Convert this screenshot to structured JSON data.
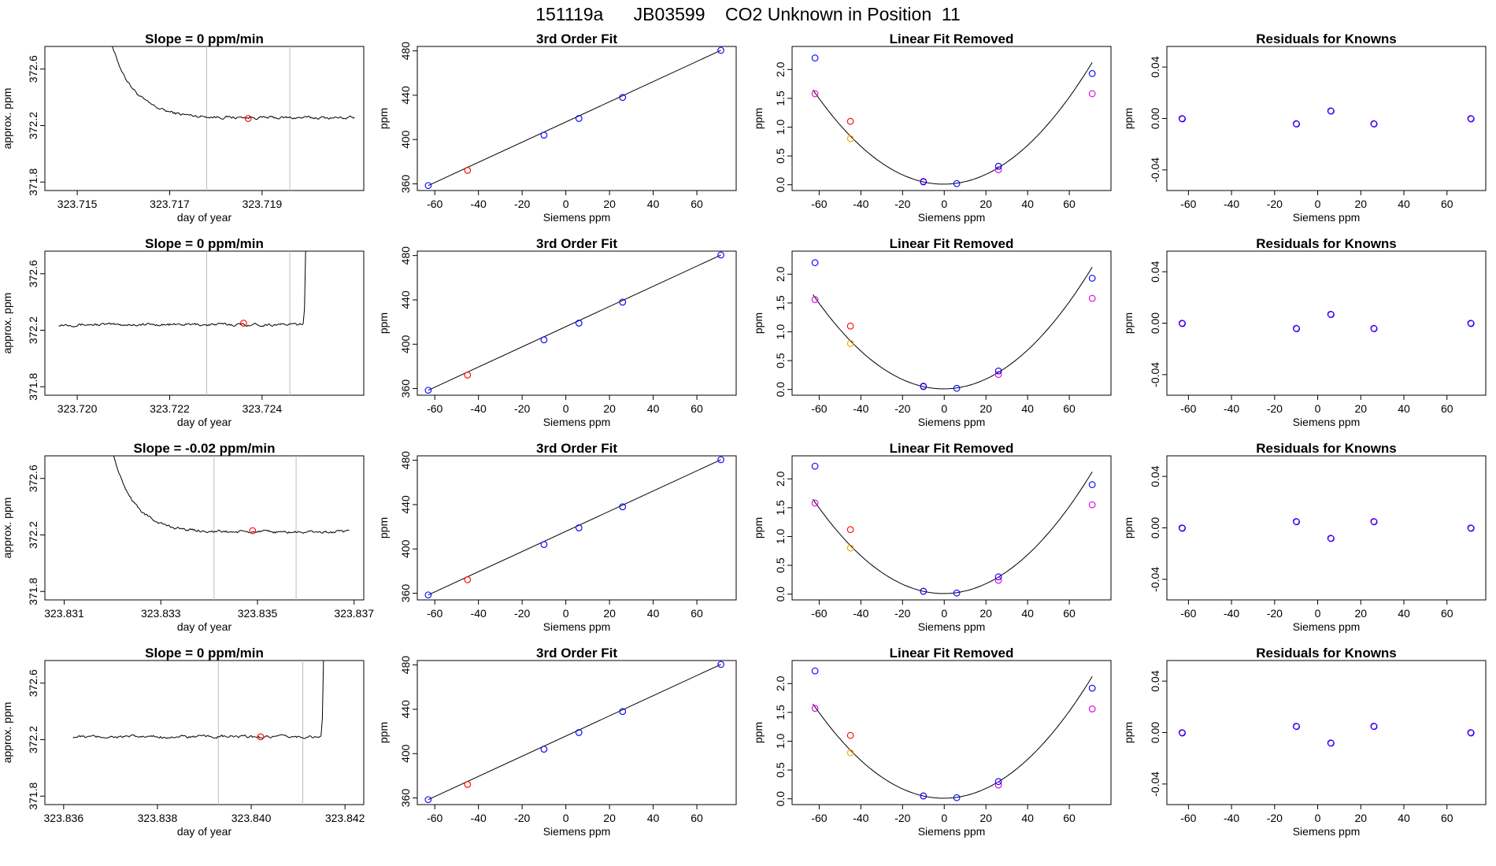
{
  "page": {
    "title": "151119a      JB03599    CO2 Unknown in Position  11"
  },
  "labels": {
    "x_time": "day of year",
    "y_time": "approx. ppm",
    "x_fit": "Siemens ppm",
    "y_fit": "ppm",
    "title_fit": "3rd Order Fit",
    "title_lin": "Linear Fit Removed",
    "title_res": "Residuals for Knowns"
  },
  "colors": {
    "standard": "#0000ff",
    "unknown": "#ff0000",
    "alt": "#dd00dd",
    "alt2": "#ffa500",
    "vline": "#bdbdbd",
    "curve": "#000000"
  },
  "chart_data": [
    {
      "type": "multi-panel",
      "row": 1,
      "time_series": {
        "type": "line",
        "title": "Slope =  0  ppm/min",
        "xlabel": "day of year",
        "ylabel": "approx. ppm",
        "xlim": [
          323.7143,
          323.7212
        ],
        "ylim": [
          371.74,
          372.76
        ],
        "xticks": [
          "323.715",
          "323.717",
          "323.719"
        ],
        "xtick_values": [
          323.715,
          323.717,
          323.719
        ],
        "yticks": [
          "371.8",
          "372.2",
          "372.6"
        ],
        "ytick_values": [
          371.8,
          372.2,
          372.6
        ],
        "vlines": [
          323.7178,
          323.7196
        ],
        "marker": {
          "x": 323.7187,
          "y": 372.25
        },
        "trace": {
          "x_start": 323.7155,
          "x_end": 323.721,
          "start_value": 373.1,
          "settle_value": 372.255,
          "decay": 0.0005,
          "noise": 0.008,
          "spike_at": null
        }
      },
      "fit": {
        "type": "scatter",
        "title": "3rd Order Fit",
        "xlabel": "Siemens ppm",
        "ylabel": "ppm",
        "xlim": [
          -68,
          78
        ],
        "ylim": [
          354,
          484
        ],
        "xticks": [
          -60,
          -40,
          -20,
          0,
          20,
          40,
          60
        ],
        "yticks": [
          360,
          400,
          440,
          480
        ],
        "line": [
          [
            -63,
            358.5
          ],
          [
            71,
            480.5
          ]
        ],
        "standards": [
          [
            -63,
            358.5
          ],
          [
            -10,
            404
          ],
          [
            6,
            419
          ],
          [
            26,
            438
          ],
          [
            71,
            480.5
          ]
        ],
        "unknown": [
          [
            -45,
            372.2
          ]
        ]
      },
      "linear_removed": {
        "type": "scatter",
        "title": "Linear Fit Removed",
        "xlabel": "Siemens ppm",
        "ylabel": "ppm",
        "xlim": [
          -73,
          80
        ],
        "ylim": [
          -0.1,
          2.4
        ],
        "xticks": [
          -60,
          -40,
          -20,
          0,
          20,
          40,
          60
        ],
        "yticks": [
          0.0,
          0.5,
          1.0,
          1.5,
          2.0
        ],
        "ytick_labels": [
          "0.0",
          "0.5",
          "1.0",
          "1.5",
          "2.0"
        ],
        "curve": {
          "a": 0.000416,
          "b": 0.00022,
          "c": 0.01
        },
        "standards": [
          [
            -62,
            2.2
          ],
          [
            -10,
            0.05
          ],
          [
            6,
            0.02
          ],
          [
            26,
            0.32
          ],
          [
            71,
            1.93
          ]
        ],
        "unknown": [
          [
            -45,
            1.1
          ]
        ],
        "alt": [
          [
            -62,
            1.58
          ],
          [
            -10,
            0.06
          ],
          [
            26,
            0.26
          ],
          [
            71,
            1.58
          ]
        ],
        "alt2": [
          [
            -45,
            0.8
          ]
        ]
      },
      "residuals": {
        "type": "scatter",
        "title": "Residuals for Knowns",
        "xlabel": "Siemens ppm",
        "ylabel": "ppm",
        "xlim": [
          -70,
          78
        ],
        "ylim": [
          -0.056,
          0.056
        ],
        "xticks": [
          -60,
          -40,
          -20,
          0,
          20,
          40,
          60
        ],
        "yticks": [
          -0.04,
          0.0,
          0.04
        ],
        "ytick_labels": [
          "-0.04",
          "0.00",
          "0.04"
        ],
        "points": [
          [
            -63,
            0.0
          ],
          [
            -10,
            -0.004
          ],
          [
            6,
            0.006
          ],
          [
            26,
            -0.004
          ],
          [
            71,
            0.0
          ]
        ]
      }
    },
    {
      "type": "multi-panel",
      "row": 2,
      "time_series": {
        "type": "line",
        "title": "Slope =  0  ppm/min",
        "xlabel": "day of year",
        "ylabel": "approx. ppm",
        "xlim": [
          323.7193,
          323.7262
        ],
        "ylim": [
          371.74,
          372.76
        ],
        "xticks": [
          "323.720",
          "323.722",
          "323.724"
        ],
        "xtick_values": [
          323.72,
          323.722,
          323.724
        ],
        "yticks": [
          "371.8",
          "372.2",
          "372.6"
        ],
        "ytick_values": [
          371.8,
          372.2,
          372.6
        ],
        "vlines": [
          323.7228,
          323.7246
        ],
        "marker": {
          "x": 323.7236,
          "y": 372.25
        },
        "trace": {
          "x_start": 323.7196,
          "x_end": 323.725,
          "start_value": 372.24,
          "settle_value": 372.24,
          "decay": 0.0005,
          "noise": 0.008,
          "spike_at": 323.7249
        }
      },
      "fit": {
        "type": "scatter",
        "title": "3rd Order Fit",
        "xlabel": "Siemens ppm",
        "ylabel": "ppm",
        "xlim": [
          -68,
          78
        ],
        "ylim": [
          354,
          484
        ],
        "xticks": [
          -60,
          -40,
          -20,
          0,
          20,
          40,
          60
        ],
        "yticks": [
          360,
          400,
          440,
          480
        ],
        "line": [
          [
            -63,
            358.5
          ],
          [
            71,
            480.5
          ]
        ],
        "standards": [
          [
            -63,
            358.5
          ],
          [
            -10,
            404
          ],
          [
            6,
            419
          ],
          [
            26,
            438
          ],
          [
            71,
            480.5
          ]
        ],
        "unknown": [
          [
            -45,
            372.2
          ]
        ]
      },
      "linear_removed": {
        "type": "scatter",
        "title": "Linear Fit Removed",
        "xlabel": "Siemens ppm",
        "ylabel": "ppm",
        "xlim": [
          -73,
          80
        ],
        "ylim": [
          -0.1,
          2.4
        ],
        "xticks": [
          -60,
          -40,
          -20,
          0,
          20,
          40,
          60
        ],
        "yticks": [
          0.0,
          0.5,
          1.0,
          1.5,
          2.0
        ],
        "ytick_labels": [
          "0.0",
          "0.5",
          "1.0",
          "1.5",
          "2.0"
        ],
        "curve": {
          "a": 0.000416,
          "b": 0.00022,
          "c": 0.01
        },
        "standards": [
          [
            -62,
            2.2
          ],
          [
            -10,
            0.05
          ],
          [
            6,
            0.02
          ],
          [
            26,
            0.32
          ],
          [
            71,
            1.93
          ]
        ],
        "unknown": [
          [
            -45,
            1.1
          ]
        ],
        "alt": [
          [
            -62,
            1.56
          ],
          [
            -10,
            0.06
          ],
          [
            26,
            0.26
          ],
          [
            71,
            1.58
          ]
        ],
        "alt2": [
          [
            -45,
            0.8
          ]
        ]
      },
      "residuals": {
        "type": "scatter",
        "title": "Residuals for Knowns",
        "xlabel": "Siemens ppm",
        "ylabel": "ppm",
        "xlim": [
          -70,
          78
        ],
        "ylim": [
          -0.056,
          0.056
        ],
        "xticks": [
          -60,
          -40,
          -20,
          0,
          20,
          40,
          60
        ],
        "yticks": [
          -0.04,
          0.0,
          0.04
        ],
        "ytick_labels": [
          "-0.04",
          "0.00",
          "0.04"
        ],
        "points": [
          [
            -63,
            0.0
          ],
          [
            -10,
            -0.004
          ],
          [
            6,
            0.007
          ],
          [
            26,
            -0.004
          ],
          [
            71,
            0.0
          ]
        ]
      }
    },
    {
      "type": "multi-panel",
      "row": 3,
      "time_series": {
        "type": "line",
        "title": "Slope =  -0.02  ppm/min",
        "xlabel": "day of year",
        "ylabel": "approx. ppm",
        "xlim": [
          323.8306,
          323.8372
        ],
        "ylim": [
          371.74,
          372.76
        ],
        "xticks": [
          "323.831",
          "323.833",
          "323.835",
          "323.837"
        ],
        "xtick_values": [
          323.831,
          323.833,
          323.835,
          323.837
        ],
        "yticks": [
          "371.8",
          "372.2",
          "372.6"
        ],
        "ytick_values": [
          371.8,
          372.2,
          372.6
        ],
        "vlines": [
          323.8341,
          323.8358
        ],
        "marker": {
          "x": 323.8349,
          "y": 372.23
        },
        "trace": {
          "x_start": 323.8318,
          "x_end": 323.8369,
          "start_value": 373.1,
          "settle_value": 372.22,
          "decay": 0.00045,
          "noise": 0.008,
          "spike_at": null
        }
      },
      "fit": {
        "type": "scatter",
        "title": "3rd Order Fit",
        "xlabel": "Siemens ppm",
        "ylabel": "ppm",
        "xlim": [
          -68,
          78
        ],
        "ylim": [
          354,
          484
        ],
        "xticks": [
          -60,
          -40,
          -20,
          0,
          20,
          40,
          60
        ],
        "yticks": [
          360,
          400,
          440,
          480
        ],
        "line": [
          [
            -63,
            358.5
          ],
          [
            71,
            480.5
          ]
        ],
        "standards": [
          [
            -63,
            358.5
          ],
          [
            -10,
            404
          ],
          [
            6,
            419
          ],
          [
            26,
            438
          ],
          [
            71,
            480.5
          ]
        ],
        "unknown": [
          [
            -45,
            372.2
          ]
        ]
      },
      "linear_removed": {
        "type": "scatter",
        "title": "Linear Fit Removed",
        "xlabel": "Siemens ppm",
        "ylabel": "ppm",
        "xlim": [
          -73,
          80
        ],
        "ylim": [
          -0.1,
          2.4
        ],
        "xticks": [
          -60,
          -40,
          -20,
          0,
          20,
          40,
          60
        ],
        "yticks": [
          0.0,
          0.5,
          1.0,
          1.5,
          2.0
        ],
        "ytick_labels": [
          "0.0",
          "0.5",
          "1.0",
          "1.5",
          "2.0"
        ],
        "curve": {
          "a": 0.000416,
          "b": 0.00022,
          "c": 0.01
        },
        "standards": [
          [
            -62,
            2.22
          ],
          [
            -10,
            0.05
          ],
          [
            6,
            0.02
          ],
          [
            26,
            0.3
          ],
          [
            71,
            1.9
          ]
        ],
        "unknown": [
          [
            -45,
            1.12
          ]
        ],
        "alt": [
          [
            -62,
            1.58
          ],
          [
            -10,
            0.05
          ],
          [
            26,
            0.24
          ],
          [
            71,
            1.55
          ]
        ],
        "alt2": [
          [
            -45,
            0.8
          ]
        ]
      },
      "residuals": {
        "type": "scatter",
        "title": "Residuals for Knowns",
        "xlabel": "Siemens ppm",
        "ylabel": "ppm",
        "xlim": [
          -70,
          78
        ],
        "ylim": [
          -0.056,
          0.056
        ],
        "xticks": [
          -60,
          -40,
          -20,
          0,
          20,
          40,
          60
        ],
        "yticks": [
          -0.04,
          0.0,
          0.04
        ],
        "ytick_labels": [
          "-0.04",
          "0.00",
          "0.04"
        ],
        "points": [
          [
            -63,
            0.0
          ],
          [
            -10,
            0.005
          ],
          [
            6,
            -0.008
          ],
          [
            26,
            0.005
          ],
          [
            71,
            0.0
          ]
        ]
      }
    },
    {
      "type": "multi-panel",
      "row": 4,
      "time_series": {
        "type": "line",
        "title": "Slope =  0  ppm/min",
        "xlabel": "day of year",
        "ylabel": "approx. ppm",
        "xlim": [
          323.8356,
          323.8424
        ],
        "ylim": [
          371.74,
          372.76
        ],
        "xticks": [
          "323.836",
          "323.838",
          "323.840",
          "323.842"
        ],
        "xtick_values": [
          323.836,
          323.838,
          323.84,
          323.842
        ],
        "yticks": [
          "371.8",
          "372.2",
          "372.6"
        ],
        "ytick_values": [
          371.8,
          372.2,
          372.6
        ],
        "vlines": [
          323.8393,
          323.8411
        ],
        "marker": {
          "x": 323.8402,
          "y": 372.22
        },
        "trace": {
          "x_start": 323.8362,
          "x_end": 323.8416,
          "start_value": 372.22,
          "settle_value": 372.22,
          "decay": 0.0005,
          "noise": 0.008,
          "spike_at": 323.8415
        }
      },
      "fit": {
        "type": "scatter",
        "title": "3rd Order Fit",
        "xlabel": "Siemens ppm",
        "ylabel": "ppm",
        "xlim": [
          -68,
          78
        ],
        "ylim": [
          354,
          484
        ],
        "xticks": [
          -60,
          -40,
          -20,
          0,
          20,
          40,
          60
        ],
        "yticks": [
          360,
          400,
          440,
          480
        ],
        "line": [
          [
            -63,
            358.5
          ],
          [
            71,
            480.5
          ]
        ],
        "standards": [
          [
            -63,
            358.5
          ],
          [
            -10,
            404
          ],
          [
            6,
            419
          ],
          [
            26,
            438
          ],
          [
            71,
            480.5
          ]
        ],
        "unknown": [
          [
            -45,
            372.2
          ]
        ]
      },
      "linear_removed": {
        "type": "scatter",
        "title": "Linear Fit Removed",
        "xlabel": "Siemens ppm",
        "ylabel": "ppm",
        "xlim": [
          -73,
          80
        ],
        "ylim": [
          -0.1,
          2.4
        ],
        "xticks": [
          -60,
          -40,
          -20,
          0,
          20,
          40,
          60
        ],
        "yticks": [
          0.0,
          0.5,
          1.0,
          1.5,
          2.0
        ],
        "ytick_labels": [
          "0.0",
          "0.5",
          "1.0",
          "1.5",
          "2.0"
        ],
        "curve": {
          "a": 0.000416,
          "b": 0.00022,
          "c": 0.01
        },
        "standards": [
          [
            -62,
            2.22
          ],
          [
            -10,
            0.05
          ],
          [
            6,
            0.02
          ],
          [
            26,
            0.3
          ],
          [
            71,
            1.92
          ]
        ],
        "unknown": [
          [
            -45,
            1.1
          ]
        ],
        "alt": [
          [
            -62,
            1.57
          ],
          [
            -10,
            0.05
          ],
          [
            26,
            0.24
          ],
          [
            71,
            1.56
          ]
        ],
        "alt2": [
          [
            -45,
            0.8
          ]
        ]
      },
      "residuals": {
        "type": "scatter",
        "title": "Residuals for Knowns",
        "xlabel": "Siemens ppm",
        "ylabel": "ppm",
        "xlim": [
          -70,
          78
        ],
        "ylim": [
          -0.056,
          0.056
        ],
        "xticks": [
          -60,
          -40,
          -20,
          0,
          20,
          40,
          60
        ],
        "yticks": [
          -0.04,
          0.0,
          0.04
        ],
        "ytick_labels": [
          "-0.04",
          "0.00",
          "0.04"
        ],
        "points": [
          [
            -63,
            0.0
          ],
          [
            -10,
            0.005
          ],
          [
            6,
            -0.008
          ],
          [
            26,
            0.005
          ],
          [
            71,
            0.0
          ]
        ]
      }
    }
  ]
}
